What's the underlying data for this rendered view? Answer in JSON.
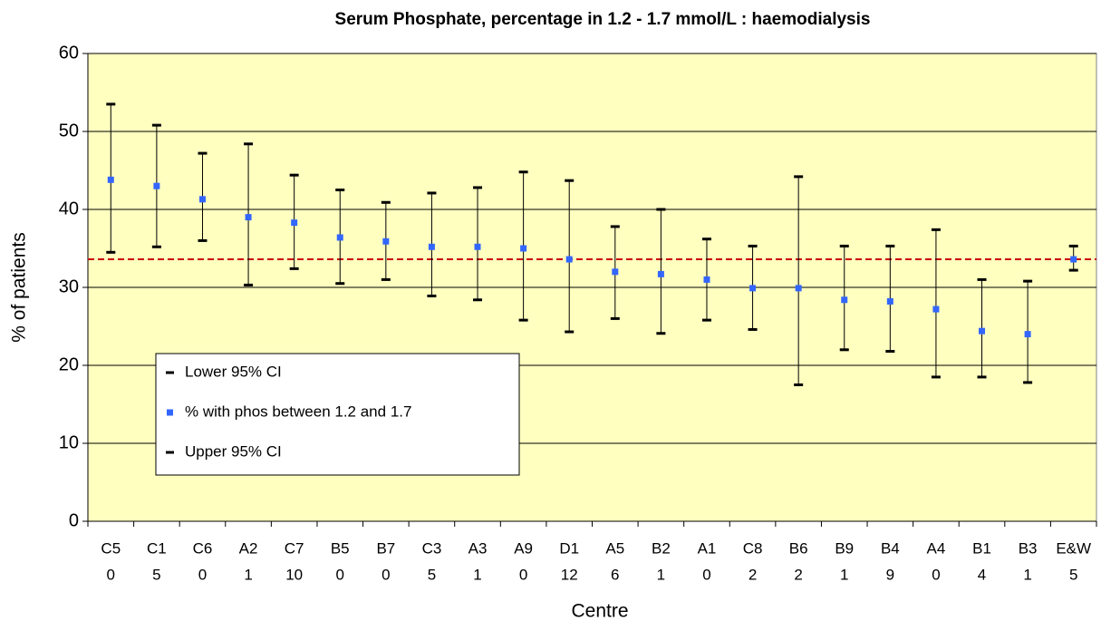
{
  "chart_data": {
    "type": "dot",
    "title": "Serum Phosphate, percentage in 1.2 - 1.7 mmol/L : haemodialysis",
    "xlabel": "Centre",
    "ylabel": "% of patients",
    "categories": [
      "C5",
      "C1",
      "C6",
      "A2",
      "C7",
      "B5",
      "B7",
      "C3",
      "A3",
      "A9",
      "D1",
      "A5",
      "B2",
      "A1",
      "C8",
      "B6",
      "B9",
      "B4",
      "A4",
      "B1",
      "B3",
      "E&W"
    ],
    "category_sublabels": [
      "0",
      "5",
      "0",
      "1",
      "10",
      "0",
      "0",
      "5",
      "1",
      "0",
      "12",
      "6",
      "1",
      "0",
      "2",
      "2",
      "1",
      "9",
      "0",
      "4",
      "1",
      "5"
    ],
    "series": [
      {
        "name": "Lower 95% CI",
        "color": "#000000",
        "values": [
          34.5,
          35.2,
          36,
          30.3,
          32.4,
          30.5,
          31,
          28.9,
          28.4,
          25.8,
          24.3,
          26,
          24.1,
          25.8,
          24.6,
          17.5,
          22,
          21.8,
          18.5,
          18.5,
          17.8,
          32.2
        ]
      },
      {
        "name": "% with phos between 1.2 and 1.7",
        "color": "#3366ff",
        "values": [
          43.8,
          43,
          41.3,
          39,
          38.3,
          36.4,
          35.9,
          35.2,
          35.2,
          35,
          33.6,
          32,
          31.7,
          31,
          29.9,
          29.9,
          28.4,
          28.2,
          27.2,
          24.4,
          24,
          33.6
        ]
      },
      {
        "name": "Upper 95% CI",
        "color": "#000000",
        "values": [
          53.5,
          50.8,
          47.2,
          48.4,
          44.4,
          42.5,
          40.9,
          42.1,
          42.8,
          44.8,
          43.7,
          37.8,
          40,
          36.2,
          35.3,
          44.2,
          35.3,
          35.3,
          37.4,
          31,
          30.8,
          35.3
        ]
      }
    ],
    "reference_line": 33.6,
    "reference_color": "#cc0000",
    "plot_background": "#ffffc0",
    "ylim": [
      0,
      60
    ],
    "yticks": [
      0,
      10,
      20,
      30,
      40,
      50,
      60
    ],
    "grid": true
  }
}
